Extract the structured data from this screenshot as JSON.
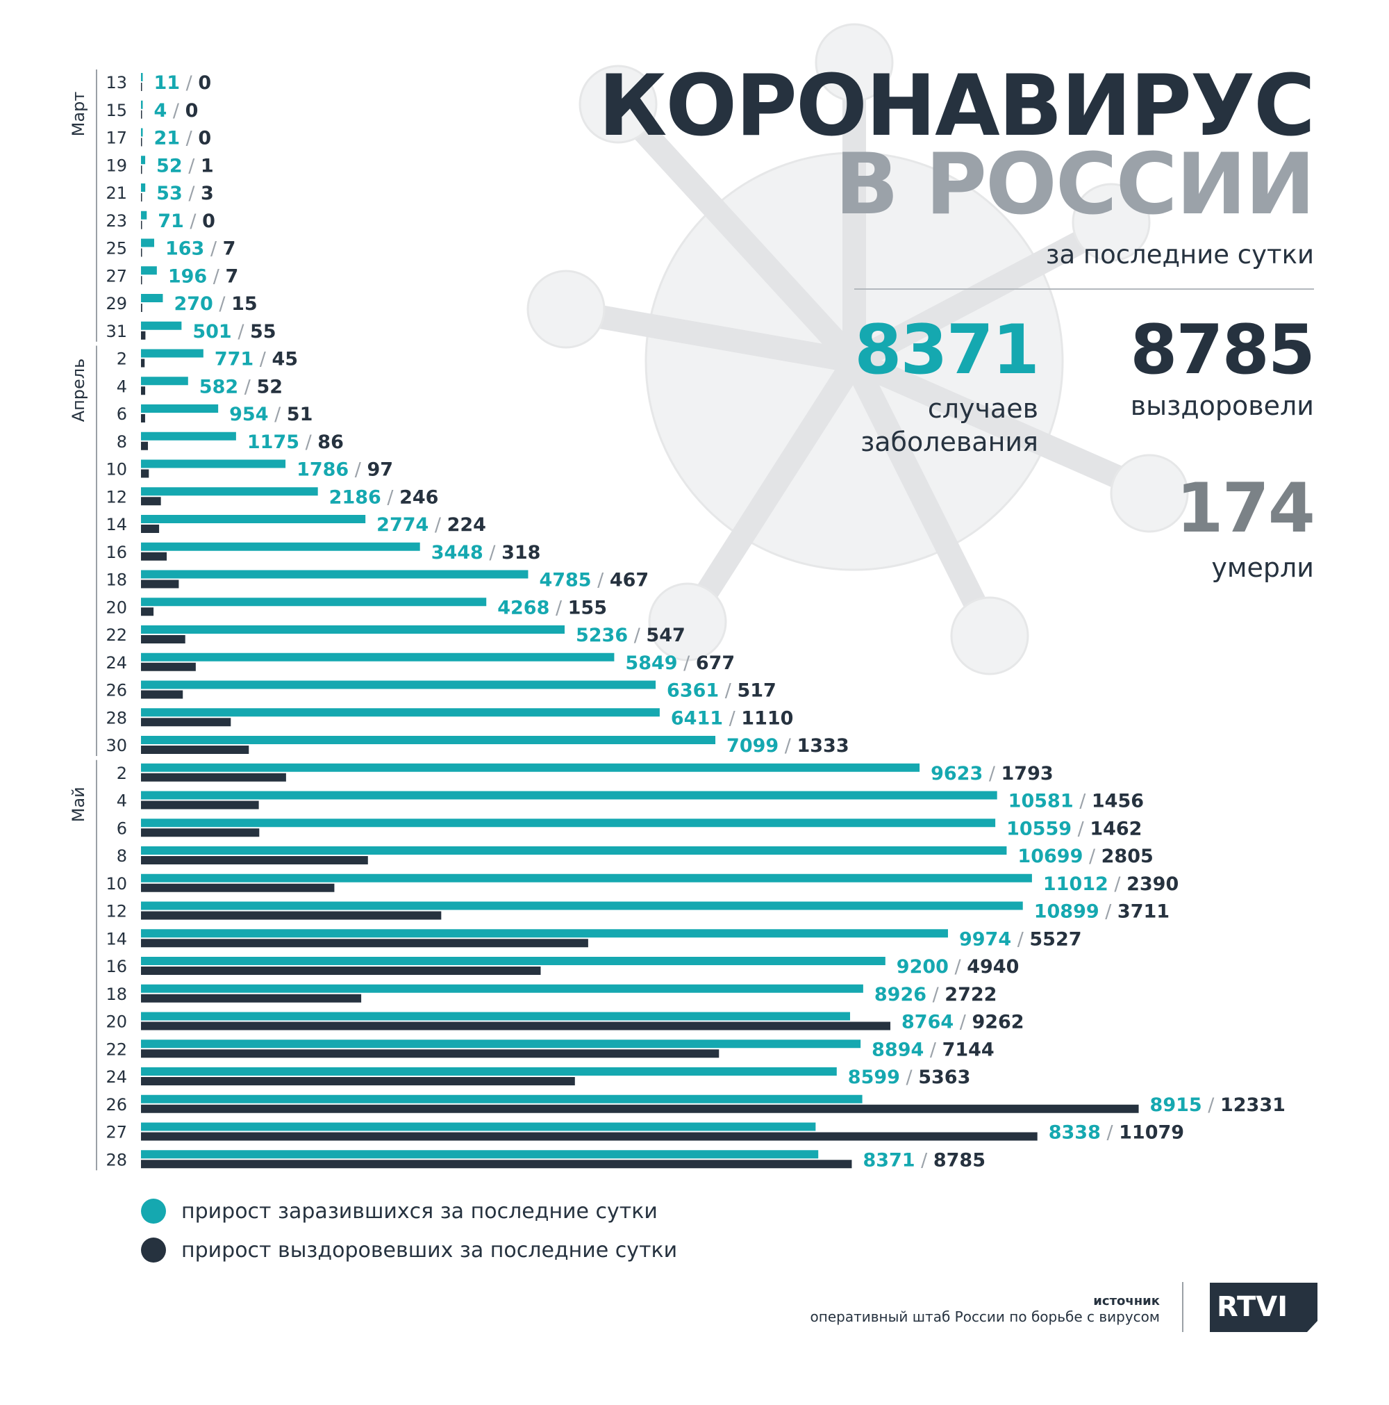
{
  "header": {
    "title_line1": "КОРОНАВИРУС",
    "title_line2": "В РОССИИ",
    "subtitle": "за последние сутки"
  },
  "stats": {
    "cases": {
      "value": "8371",
      "label_line1": "случаев",
      "label_line2": "заболевания"
    },
    "recovered": {
      "value": "8785",
      "label": "выздоровели"
    },
    "deaths": {
      "value": "174",
      "label": "умерли"
    }
  },
  "legend": {
    "infected": "прирост заразившихся за последние сутки",
    "recovered": "прирост выздоровевших за последние сутки"
  },
  "footer": {
    "source_heading": "источник",
    "source_text": "оперативный штаб России по борьбе с вирусом",
    "logo_text": "RTVI"
  },
  "colors": {
    "infected": "#15a8b0",
    "recovered": "#26323f",
    "muted": "#9ba2a9",
    "background": "#ffffff"
  },
  "chart_data": {
    "type": "bar",
    "orientation": "horizontal",
    "months": [
      {
        "name": "Март",
        "first_index": 0,
        "last_index": 9
      },
      {
        "name": "Апрель",
        "first_index": 10,
        "last_index": 24
      },
      {
        "name": "Май",
        "first_index": 25,
        "last_index": 39
      }
    ],
    "categories": [
      "13",
      "15",
      "17",
      "19",
      "21",
      "23",
      "25",
      "27",
      "29",
      "31",
      "2",
      "4",
      "6",
      "8",
      "10",
      "12",
      "14",
      "16",
      "18",
      "20",
      "22",
      "24",
      "26",
      "28",
      "30",
      "2",
      "4",
      "6",
      "8",
      "10",
      "12",
      "14",
      "16",
      "18",
      "20",
      "22",
      "24",
      "26",
      "27",
      "28"
    ],
    "series": [
      {
        "name": "прирост заразившихся за последние сутки",
        "values": [
          11,
          4,
          21,
          52,
          53,
          71,
          163,
          196,
          270,
          501,
          771,
          582,
          954,
          1175,
          1786,
          2186,
          2774,
          3448,
          4785,
          4268,
          5236,
          5849,
          6361,
          6411,
          7099,
          9623,
          10581,
          10559,
          10699,
          11012,
          10899,
          9974,
          9200,
          8926,
          8764,
          8894,
          8599,
          8915,
          8338,
          8371
        ]
      },
      {
        "name": "прирост выздоровевших за последние сутки",
        "values": [
          0,
          0,
          0,
          1,
          3,
          0,
          7,
          7,
          15,
          55,
          45,
          52,
          51,
          86,
          97,
          246,
          224,
          318,
          467,
          155,
          547,
          677,
          517,
          1110,
          1333,
          1793,
          1456,
          1462,
          2805,
          2390,
          3711,
          5527,
          4940,
          2722,
          9262,
          7144,
          5363,
          12331,
          11079,
          8785
        ]
      }
    ],
    "label_separator": "/"
  }
}
